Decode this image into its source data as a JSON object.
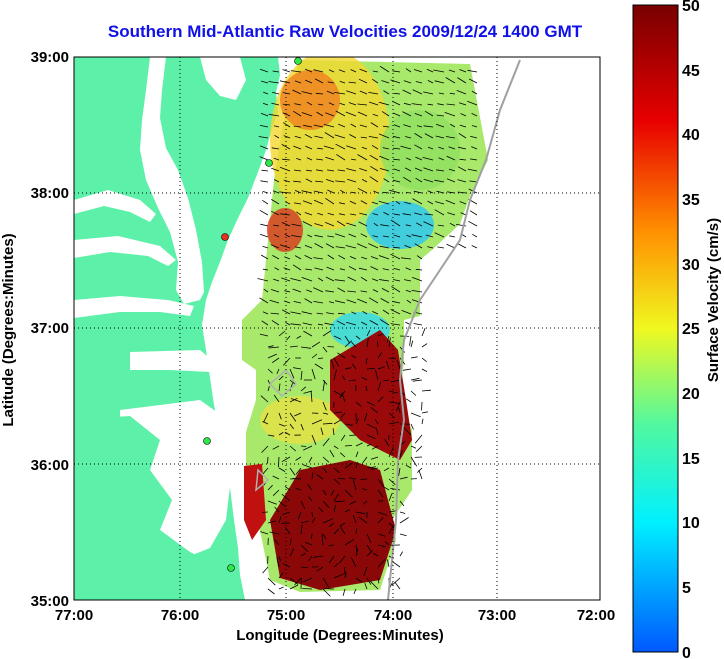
{
  "title": "Southern Mid-Atlantic Raw Velocities 2009/12/24 1400 GMT",
  "axes": {
    "xlabel": "Longitude (Degrees:Minutes)",
    "ylabel": "Latitude (Degrees:Minutes)",
    "x_ticks": [
      "77:00",
      "76:00",
      "75:00",
      "74:00",
      "73:00",
      "72:00"
    ],
    "y_ticks": [
      "39:00",
      "38:00",
      "37:00",
      "36:00",
      "35:00"
    ],
    "xlim": [
      -77,
      -72
    ],
    "ylim": [
      35,
      39
    ]
  },
  "colorbar": {
    "label": "Surface Velocity (cm/s)",
    "ticks": [
      "50",
      "45",
      "40",
      "35",
      "30",
      "25",
      "20",
      "15",
      "10",
      "5",
      "0"
    ],
    "range": [
      0,
      50
    ]
  },
  "colors": {
    "land": "#5cf0a8",
    "title": "#1010e8",
    "station": "#2ee84a",
    "station_alert": "#e83020"
  }
}
